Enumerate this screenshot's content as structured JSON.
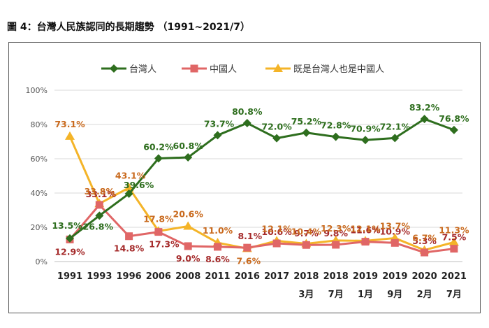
{
  "figure_title": "圖 4：台灣人民族認同的長期趨勢 （1991~2021/7）",
  "chart_data": {
    "type": "line",
    "title": "",
    "xlabel": "",
    "ylabel": "",
    "ylim": [
      0,
      100
    ],
    "yticks": [
      "0%",
      "20%",
      "40%",
      "60%",
      "80%",
      "100%"
    ],
    "grid": true,
    "legend_position": "top",
    "categories": [
      {
        "year": "1991",
        "month": ""
      },
      {
        "year": "1993",
        "month": ""
      },
      {
        "year": "1996",
        "month": ""
      },
      {
        "year": "2006",
        "month": ""
      },
      {
        "year": "2008",
        "month": ""
      },
      {
        "year": "2011",
        "month": ""
      },
      {
        "year": "2016",
        "month": ""
      },
      {
        "year": "2017",
        "month": ""
      },
      {
        "year": "2018",
        "month": "3月"
      },
      {
        "year": "2018",
        "month": "7月"
      },
      {
        "year": "2019",
        "month": "1月"
      },
      {
        "year": "2019",
        "month": "9月"
      },
      {
        "year": "2020",
        "month": "2月"
      },
      {
        "year": "2021",
        "month": "7月"
      }
    ],
    "series": [
      {
        "name": "台灣人",
        "color": "#2e6e1e",
        "label_color": "#2e6e1e",
        "marker": "diamond",
        "values": [
          13.5,
          26.8,
          39.6,
          60.2,
          60.8,
          73.7,
          80.8,
          72.0,
          75.2,
          72.8,
          70.9,
          72.1,
          83.2,
          76.8
        ],
        "labels": [
          "13.5%",
          "26.8%",
          "39.6%",
          "60.2%",
          "60.8%",
          "73.7%",
          "80.8%",
          "72.0%",
          "75.2%",
          "72.8%",
          "70.9%",
          "72.1%",
          "83.2%",
          "76.8%"
        ]
      },
      {
        "name": "中國人",
        "color": "#e06666",
        "label_color": "#a52a2a",
        "marker": "square",
        "values": [
          12.9,
          33.1,
          14.8,
          17.3,
          9.0,
          8.6,
          8.1,
          10.6,
          9.7,
          9.8,
          11.6,
          10.9,
          5.3,
          7.5
        ],
        "labels": [
          "12.9%",
          "33.1%",
          "14.8%",
          "17.3%",
          "9.0%",
          "8.6%",
          "8.1%",
          "10.6%",
          "9.7%",
          "9.8%",
          "11.6%",
          "10.9%",
          "5.3%",
          "7.5%"
        ]
      },
      {
        "name": "既是台灣人也是中國人",
        "color": "#f4b428",
        "label_color": "#c96a1e",
        "marker": "triangle",
        "values": [
          73.1,
          33.8,
          43.1,
          17.8,
          20.6,
          11.0,
          7.6,
          12.1,
          10.4,
          12.3,
          12.1,
          13.7,
          6.7,
          11.3
        ],
        "labels": [
          "73.1%",
          "33.8%",
          "43.1%",
          "17.8%",
          "20.6%",
          "11.0%",
          "7.6%",
          "12.1%",
          "10.4%",
          "12.3%",
          "12.1%",
          "13.7%",
          "6.7%",
          "11.3%"
        ]
      }
    ]
  }
}
